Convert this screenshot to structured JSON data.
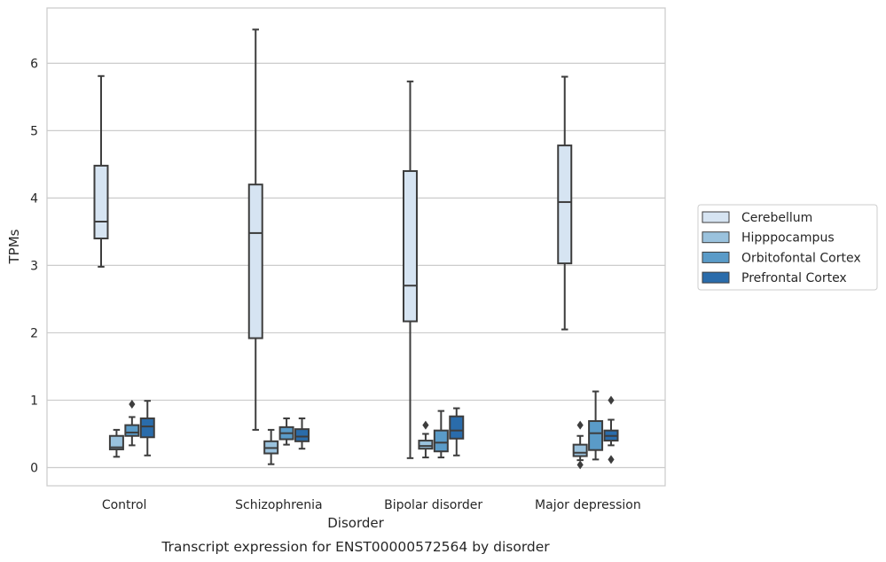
{
  "chart_data": {
    "type": "box",
    "title": "Transcript expression for ENST00000572564 by disorder",
    "xlabel": "Disorder",
    "ylabel": "TPMs",
    "ylim": [
      -0.27,
      6.82
    ],
    "yticks": [
      0,
      1,
      2,
      3,
      4,
      5,
      6
    ],
    "grid": true,
    "legend_position": "right",
    "categories": [
      "Control",
      "Schizophrenia",
      "Bipolar disorder",
      "Major depression"
    ],
    "series": [
      {
        "name": "Cerebellum",
        "color": "#d6e4f2",
        "boxes": [
          {
            "whisker_low": 2.98,
            "q1": 3.4,
            "median": 3.65,
            "q3": 4.48,
            "whisker_high": 5.81,
            "outliers": []
          },
          {
            "whisker_low": 0.56,
            "q1": 1.92,
            "median": 3.48,
            "q3": 4.2,
            "whisker_high": 6.5,
            "outliers": []
          },
          {
            "whisker_low": 0.14,
            "q1": 2.17,
            "median": 2.7,
            "q3": 4.4,
            "whisker_high": 5.73,
            "outliers": []
          },
          {
            "whisker_low": 2.05,
            "q1": 3.03,
            "median": 3.94,
            "q3": 4.78,
            "whisker_high": 5.8,
            "outliers": []
          }
        ]
      },
      {
        "name": "Hipppocampus",
        "color": "#9ac2dd",
        "boxes": [
          {
            "whisker_low": 0.16,
            "q1": 0.27,
            "median": 0.3,
            "q3": 0.47,
            "whisker_high": 0.56,
            "outliers": []
          },
          {
            "whisker_low": 0.05,
            "q1": 0.21,
            "median": 0.29,
            "q3": 0.39,
            "whisker_high": 0.56,
            "outliers": []
          },
          {
            "whisker_low": 0.15,
            "q1": 0.28,
            "median": 0.32,
            "q3": 0.4,
            "whisker_high": 0.5,
            "outliers": [
              0.63
            ]
          },
          {
            "whisker_low": 0.11,
            "q1": 0.17,
            "median": 0.22,
            "q3": 0.34,
            "whisker_high": 0.47,
            "outliers": [
              0.63,
              0.04
            ]
          }
        ]
      },
      {
        "name": "Orbitofontal Cortex",
        "color": "#5a9bc8",
        "boxes": [
          {
            "whisker_low": 0.33,
            "q1": 0.47,
            "median": 0.52,
            "q3": 0.63,
            "whisker_high": 0.75,
            "outliers": [
              0.94
            ]
          },
          {
            "whisker_low": 0.34,
            "q1": 0.42,
            "median": 0.51,
            "q3": 0.6,
            "whisker_high": 0.73,
            "outliers": []
          },
          {
            "whisker_low": 0.15,
            "q1": 0.24,
            "median": 0.37,
            "q3": 0.55,
            "whisker_high": 0.84,
            "outliers": []
          },
          {
            "whisker_low": 0.12,
            "q1": 0.26,
            "median": 0.51,
            "q3": 0.69,
            "whisker_high": 1.13,
            "outliers": []
          }
        ]
      },
      {
        "name": "Prefrontal Cortex",
        "color": "#2a6cab",
        "boxes": [
          {
            "whisker_low": 0.18,
            "q1": 0.45,
            "median": 0.61,
            "q3": 0.73,
            "whisker_high": 0.99,
            "outliers": []
          },
          {
            "whisker_low": 0.28,
            "q1": 0.39,
            "median": 0.46,
            "q3": 0.57,
            "whisker_high": 0.73,
            "outliers": []
          },
          {
            "whisker_low": 0.18,
            "q1": 0.43,
            "median": 0.55,
            "q3": 0.76,
            "whisker_high": 0.88,
            "outliers": []
          },
          {
            "whisker_low": 0.33,
            "q1": 0.4,
            "median": 0.47,
            "q3": 0.55,
            "whisker_high": 0.71,
            "outliers": [
              1.0,
              0.12
            ]
          }
        ]
      }
    ]
  }
}
